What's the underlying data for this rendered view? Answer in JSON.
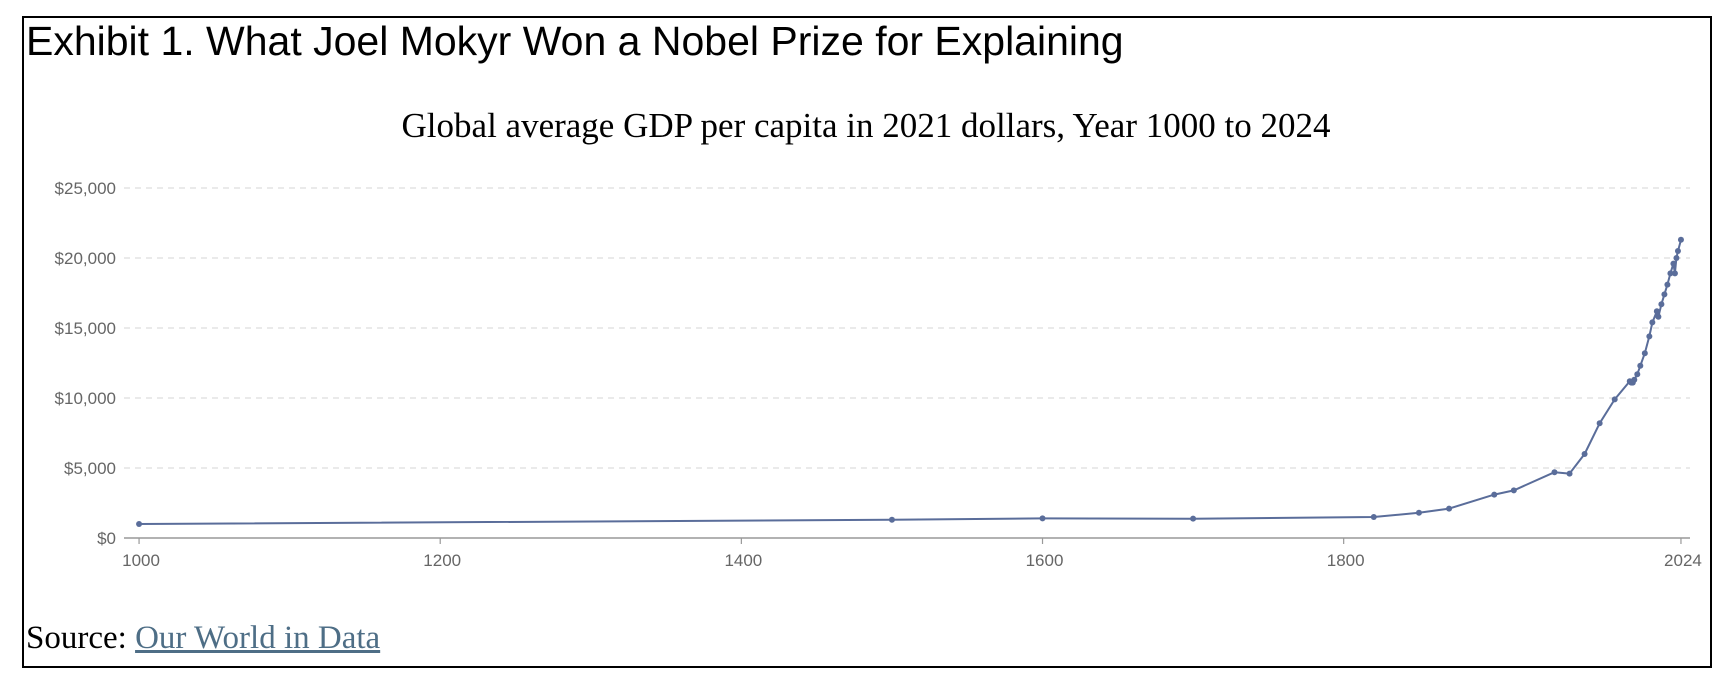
{
  "exhibit_title": "Exhibit 1. What Joel Mokyr Won a Nobel Prize for Explaining",
  "source": {
    "prefix": "Source: ",
    "link_text": "Our World in Data"
  },
  "colors": {
    "line": "#5a6d9a",
    "grid": "#dddddd",
    "axis": "#999999"
  },
  "chart_data": {
    "type": "line",
    "title": "Global average GDP per capita in 2021 dollars, Year 1000 to 2024",
    "xlabel": "",
    "ylabel": "",
    "xlim": [
      990,
      2030
    ],
    "ylim": [
      0,
      25000
    ],
    "grid": true,
    "x_ticks": [
      {
        "value": 1000,
        "label": "1000"
      },
      {
        "value": 1200,
        "label": "1200"
      },
      {
        "value": 1400,
        "label": "1400"
      },
      {
        "value": 1600,
        "label": "1600"
      },
      {
        "value": 1800,
        "label": "1800"
      },
      {
        "value": 2024,
        "label": "2024"
      }
    ],
    "y_ticks": [
      {
        "value": 0,
        "label": "$0"
      },
      {
        "value": 5000,
        "label": "$5,000"
      },
      {
        "value": 10000,
        "label": "$10,000"
      },
      {
        "value": 15000,
        "label": "$15,000"
      },
      {
        "value": 20000,
        "label": "$20,000"
      },
      {
        "value": 25000,
        "label": "$25,000"
      }
    ],
    "series": [
      {
        "x": [
          1000,
          1500,
          1600,
          1700,
          1820,
          1850,
          1870,
          1900,
          1913,
          1940,
          1950,
          1960,
          1970,
          1980,
          1990,
          1991,
          1992,
          1993,
          1995,
          1997,
          2000,
          2003,
          2005,
          2008,
          2009,
          2011,
          2013,
          2015,
          2017,
          2019,
          2020,
          2021,
          2022,
          2024
        ],
        "y": [
          1000,
          1300,
          1400,
          1380,
          1500,
          1800,
          2100,
          3100,
          3400,
          4700,
          4600,
          6000,
          8200,
          9900,
          11200,
          11100,
          11100,
          11300,
          11700,
          12300,
          13200,
          14400,
          15400,
          16200,
          15800,
          16700,
          17400,
          18100,
          18900,
          19600,
          18900,
          20000,
          20500,
          21300
        ]
      }
    ]
  }
}
